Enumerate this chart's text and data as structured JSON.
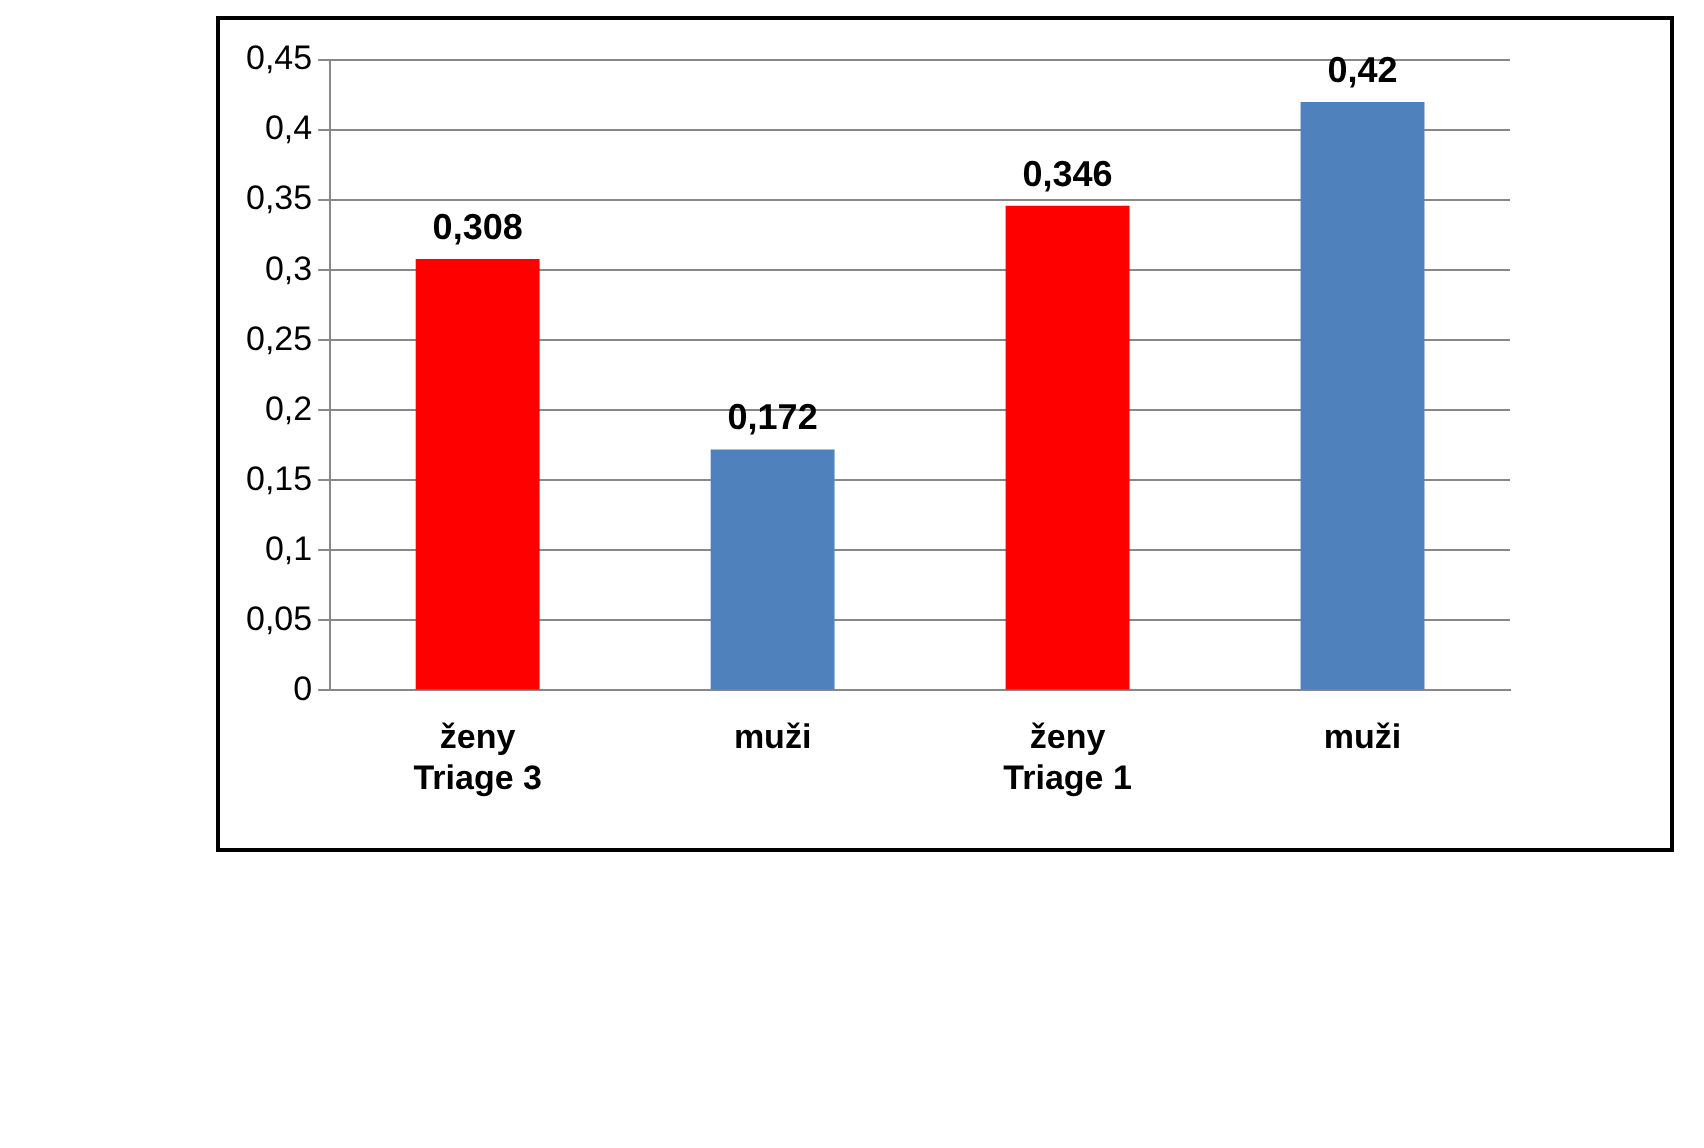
{
  "chart_data": {
    "type": "bar",
    "categories": [
      "ženy\nTriage 3",
      "muži",
      "ženy\nTriage 1",
      "muži"
    ],
    "values": [
      0.308,
      0.172,
      0.346,
      0.42
    ],
    "colors": [
      "#ff0000",
      "#4f81bd",
      "#ff0000",
      "#4f81bd"
    ],
    "value_labels": [
      "0,308",
      "0,172",
      "0,346",
      "0,42"
    ],
    "ylim": [
      0,
      0.45
    ],
    "yticks": [
      0,
      {
        "value": 0.05,
        "label": "0,05"
      },
      {
        "value": 0.1,
        "label": "0,1"
      },
      {
        "value": 0.15,
        "label": "0,15"
      },
      {
        "value": 0.2,
        "label": "0,2"
      },
      {
        "value": 0.25,
        "label": "0,25"
      },
      {
        "value": 0.3,
        "label": "0,3"
      },
      {
        "value": 0.35,
        "label": "0,35"
      },
      {
        "value": 0.4,
        "label": "0,4"
      },
      {
        "value": 0.45,
        "label": "0,45"
      }
    ],
    "grid": "y",
    "legend": false
  }
}
